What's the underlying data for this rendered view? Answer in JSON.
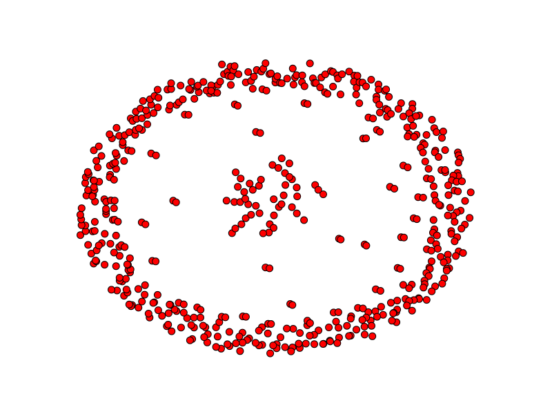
{
  "graph": {
    "type": "network-node-layout",
    "node_style": {
      "fill": "#ff0000",
      "stroke": "#000000"
    },
    "background": "#ffffff",
    "components": [
      {
        "id": "outer-ring",
        "kind": "ellipse-ring",
        "node_count": 420
      },
      {
        "id": "scattered-pairs",
        "kind": "small-clusters",
        "node_count": 80
      },
      {
        "id": "center-cluster",
        "kind": "branched-core",
        "node_count": 70
      }
    ]
  }
}
